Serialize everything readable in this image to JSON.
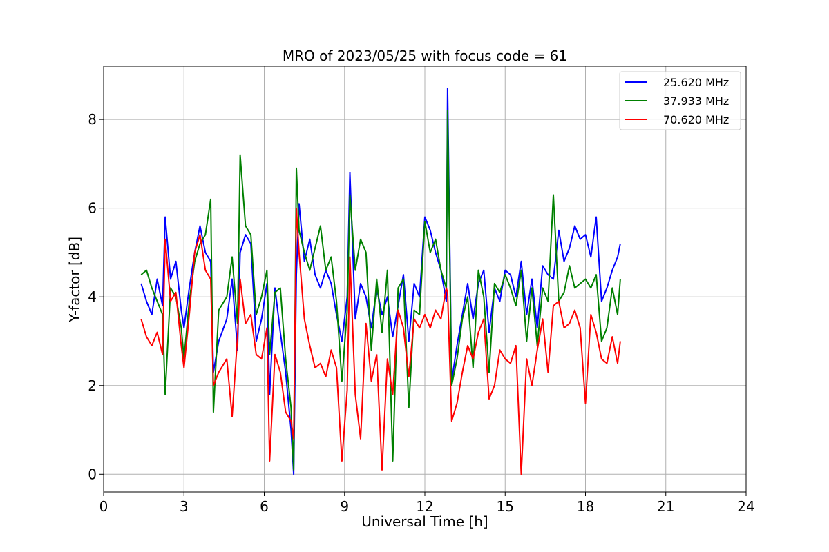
{
  "chart_data": {
    "type": "line",
    "title": "MRO of 2023/05/25 with focus code = 61",
    "xlabel": "Universal Time [h]",
    "ylabel": "Y-factor [dB]",
    "xlim": [
      0,
      24
    ],
    "ylim": [
      -0.4,
      9.2
    ],
    "xticks": [
      0,
      3,
      6,
      9,
      12,
      15,
      18,
      21,
      24
    ],
    "yticks": [
      0,
      2,
      4,
      6,
      8
    ],
    "grid": true,
    "legend_position": "top-right",
    "series": [
      {
        "name": "25.620 MHz",
        "color": "#0000ff",
        "x": [
          1.4,
          1.6,
          1.8,
          2.0,
          2.2,
          2.3,
          2.5,
          2.7,
          2.9,
          3.0,
          3.2,
          3.4,
          3.6,
          3.8,
          4.0,
          4.1,
          4.3,
          4.6,
          4.8,
          5.0,
          5.1,
          5.3,
          5.5,
          5.7,
          5.9,
          6.1,
          6.2,
          6.4,
          6.6,
          6.8,
          7.0,
          7.1,
          7.2,
          7.3,
          7.5,
          7.7,
          7.9,
          8.1,
          8.3,
          8.5,
          8.7,
          8.9,
          9.1,
          9.2,
          9.4,
          9.6,
          9.8,
          10.0,
          10.2,
          10.4,
          10.6,
          10.8,
          11.0,
          11.2,
          11.4,
          11.6,
          11.8,
          12.0,
          12.2,
          12.4,
          12.6,
          12.8,
          12.85,
          13.0,
          13.2,
          13.4,
          13.6,
          13.8,
          14.0,
          14.2,
          14.4,
          14.6,
          14.8,
          15.0,
          15.2,
          15.4,
          15.6,
          15.8,
          16.0,
          16.2,
          16.4,
          16.6,
          16.8,
          17.0,
          17.2,
          17.4,
          17.6,
          17.8,
          18.0,
          18.2,
          18.4,
          18.6,
          18.8,
          19.0,
          19.2,
          19.3
        ],
        "y": [
          4.3,
          3.9,
          3.6,
          4.4,
          3.8,
          5.8,
          4.4,
          4.8,
          3.7,
          3.3,
          4.2,
          5.0,
          5.6,
          5.0,
          4.8,
          2.3,
          3.0,
          3.5,
          4.4,
          2.8,
          5.0,
          5.4,
          5.2,
          3.0,
          3.5,
          4.3,
          1.8,
          4.2,
          3.2,
          2.3,
          1.0,
          0.0,
          4.5,
          6.1,
          4.8,
          5.3,
          4.5,
          4.2,
          4.6,
          4.3,
          3.6,
          3.0,
          4.0,
          6.8,
          3.5,
          4.3,
          4.0,
          3.3,
          4.2,
          3.6,
          4.0,
          3.1,
          3.8,
          4.5,
          3.0,
          4.3,
          4.0,
          5.8,
          5.5,
          5.0,
          4.6,
          3.9,
          8.7,
          2.1,
          2.9,
          3.6,
          4.3,
          3.5,
          4.3,
          4.6,
          3.2,
          4.2,
          3.9,
          4.6,
          4.5,
          4.0,
          4.8,
          3.6,
          4.4,
          3.3,
          4.7,
          4.5,
          4.4,
          5.5,
          4.8,
          5.1,
          5.6,
          5.3,
          5.4,
          4.9,
          5.8,
          3.9,
          4.2,
          4.6,
          4.9,
          5.2
        ]
      },
      {
        "name": "37.933 MHz",
        "color": "#008000",
        "x": [
          1.4,
          1.6,
          1.8,
          2.0,
          2.2,
          2.3,
          2.5,
          2.7,
          2.9,
          3.0,
          3.2,
          3.4,
          3.6,
          3.8,
          4.0,
          4.1,
          4.3,
          4.6,
          4.8,
          5.0,
          5.1,
          5.3,
          5.5,
          5.7,
          5.9,
          6.1,
          6.2,
          6.4,
          6.6,
          6.8,
          7.0,
          7.1,
          7.2,
          7.3,
          7.5,
          7.7,
          7.9,
          8.1,
          8.3,
          8.5,
          8.7,
          8.9,
          9.1,
          9.2,
          9.4,
          9.6,
          9.8,
          10.0,
          10.2,
          10.4,
          10.6,
          10.8,
          11.0,
          11.2,
          11.4,
          11.6,
          11.8,
          12.0,
          12.2,
          12.4,
          12.6,
          12.8,
          12.85,
          13.0,
          13.2,
          13.4,
          13.6,
          13.8,
          14.0,
          14.2,
          14.4,
          14.6,
          14.8,
          15.0,
          15.2,
          15.4,
          15.6,
          15.8,
          16.0,
          16.2,
          16.4,
          16.6,
          16.8,
          17.0,
          17.2,
          17.4,
          17.6,
          17.8,
          18.0,
          18.2,
          18.4,
          18.6,
          18.8,
          19.0,
          19.2,
          19.3
        ],
        "y": [
          4.5,
          4.6,
          4.2,
          3.9,
          3.6,
          1.8,
          4.2,
          4.0,
          3.3,
          2.6,
          3.9,
          4.8,
          5.2,
          5.4,
          6.2,
          1.4,
          3.7,
          4.0,
          4.9,
          3.4,
          7.2,
          5.6,
          5.4,
          3.6,
          4.0,
          4.6,
          2.7,
          4.1,
          4.2,
          2.6,
          1.5,
          0.1,
          6.9,
          5.5,
          5.0,
          4.6,
          5.1,
          5.6,
          4.6,
          4.9,
          3.9,
          2.1,
          3.7,
          6.3,
          4.6,
          5.3,
          5.0,
          2.8,
          4.4,
          3.2,
          4.6,
          0.3,
          4.2,
          4.4,
          1.5,
          3.7,
          3.6,
          5.7,
          5.0,
          5.3,
          4.6,
          4.2,
          8.2,
          2.0,
          2.6,
          3.5,
          4.0,
          2.4,
          4.6,
          4.0,
          2.3,
          4.3,
          4.1,
          4.5,
          4.2,
          3.8,
          4.6,
          3.0,
          4.2,
          2.9,
          4.2,
          3.9,
          6.3,
          3.9,
          4.1,
          4.7,
          4.2,
          4.3,
          4.4,
          4.2,
          4.5,
          3.0,
          3.3,
          4.2,
          3.6,
          4.4
        ]
      },
      {
        "name": "70.620 MHz",
        "color": "#ff0000",
        "x": [
          1.4,
          1.6,
          1.8,
          2.0,
          2.2,
          2.3,
          2.5,
          2.7,
          2.9,
          3.0,
          3.2,
          3.4,
          3.6,
          3.8,
          4.0,
          4.1,
          4.3,
          4.6,
          4.8,
          5.0,
          5.1,
          5.3,
          5.5,
          5.7,
          5.9,
          6.1,
          6.2,
          6.4,
          6.6,
          6.8,
          7.0,
          7.1,
          7.2,
          7.3,
          7.5,
          7.7,
          7.9,
          8.1,
          8.3,
          8.5,
          8.7,
          8.9,
          9.1,
          9.2,
          9.4,
          9.6,
          9.8,
          10.0,
          10.2,
          10.4,
          10.6,
          10.8,
          11.0,
          11.2,
          11.4,
          11.6,
          11.8,
          12.0,
          12.2,
          12.4,
          12.6,
          12.8,
          12.85,
          13.0,
          13.2,
          13.4,
          13.6,
          13.8,
          14.0,
          14.2,
          14.4,
          14.6,
          14.8,
          15.0,
          15.2,
          15.4,
          15.6,
          15.8,
          16.0,
          16.2,
          16.4,
          16.6,
          16.8,
          17.0,
          17.2,
          17.4,
          17.6,
          17.8,
          18.0,
          18.2,
          18.4,
          18.6,
          18.8,
          19.0,
          19.2,
          19.3
        ],
        "y": [
          3.5,
          3.1,
          2.9,
          3.2,
          2.7,
          5.3,
          3.9,
          4.1,
          2.9,
          2.4,
          3.6,
          5.0,
          5.4,
          4.6,
          4.4,
          2.0,
          2.3,
          2.6,
          1.3,
          3.1,
          4.4,
          3.4,
          3.6,
          2.7,
          2.6,
          3.3,
          0.3,
          2.7,
          2.3,
          1.4,
          1.2,
          0.8,
          6.0,
          5.0,
          3.5,
          2.9,
          2.4,
          2.5,
          2.2,
          2.8,
          2.4,
          0.3,
          1.9,
          4.9,
          1.8,
          0.8,
          3.4,
          2.1,
          2.7,
          0.1,
          2.6,
          1.8,
          3.7,
          3.3,
          2.2,
          3.5,
          3.3,
          3.6,
          3.3,
          3.7,
          3.5,
          4.2,
          4.1,
          1.2,
          1.6,
          2.3,
          2.9,
          2.6,
          3.2,
          3.5,
          1.7,
          2.0,
          2.8,
          2.6,
          2.5,
          2.9,
          0.0,
          2.6,
          2.0,
          2.8,
          3.5,
          2.3,
          3.8,
          3.9,
          3.3,
          3.4,
          3.7,
          3.3,
          1.6,
          3.6,
          3.2,
          2.6,
          2.5,
          3.1,
          2.5,
          3.0
        ]
      }
    ]
  }
}
